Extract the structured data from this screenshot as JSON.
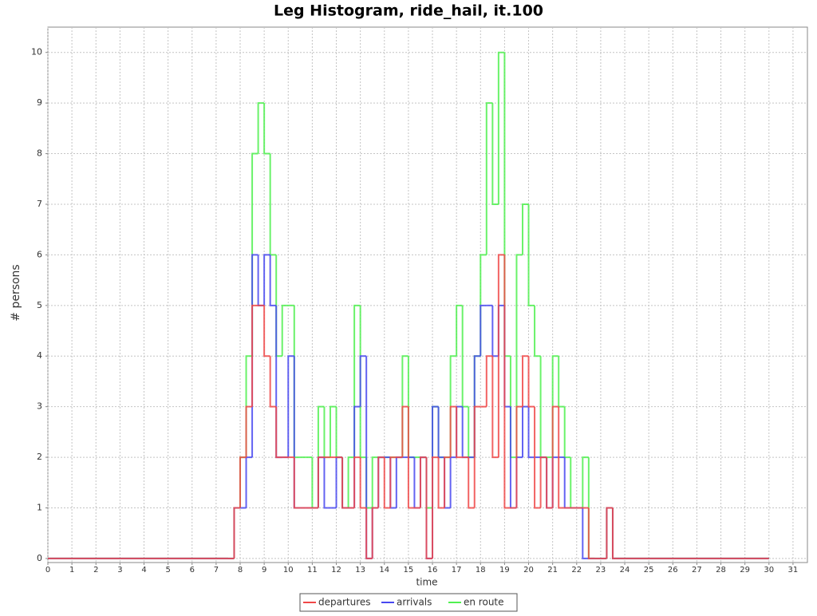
{
  "chart_data": {
    "type": "step",
    "title": "Leg Histogram, ride_hail, it.100",
    "x_label": "time",
    "y_label": "# persons",
    "x": [
      0,
      7.5,
      7.75,
      8,
      8.25,
      8.5,
      8.75,
      9,
      9.25,
      9.5,
      9.75,
      10,
      10.25,
      10.5,
      10.75,
      11,
      11.25,
      11.5,
      11.75,
      12,
      12.25,
      12.5,
      12.75,
      13,
      13.25,
      13.5,
      13.75,
      14,
      14.25,
      14.5,
      14.75,
      15,
      15.25,
      15.5,
      15.75,
      16,
      16.25,
      16.5,
      16.75,
      17,
      17.25,
      17.5,
      17.75,
      18,
      18.25,
      18.5,
      18.75,
      19,
      19.25,
      19.5,
      19.75,
      20,
      20.25,
      20.5,
      20.75,
      21,
      21.25,
      21.5,
      21.75,
      22,
      22.25,
      22.5,
      22.75,
      23,
      23.25,
      23.5,
      30
    ],
    "series": [
      {
        "name": "departures",
        "color": "#f04848",
        "values": [
          0,
          0,
          1,
          2,
          3,
          5,
          5,
          4,
          3,
          2,
          2,
          2,
          1,
          1,
          1,
          1,
          2,
          2,
          2,
          2,
          1,
          1,
          2,
          1,
          0,
          1,
          2,
          1,
          2,
          2,
          3,
          1,
          1,
          2,
          0,
          2,
          1,
          2,
          3,
          2,
          2,
          1,
          3,
          3,
          4,
          2,
          6,
          1,
          1,
          3,
          4,
          3,
          1,
          2,
          1,
          3,
          1,
          1,
          1,
          1,
          1,
          0,
          0,
          0,
          1,
          0,
          0
        ]
      },
      {
        "name": "arrivals",
        "color": "#4848f0",
        "values": [
          0,
          0,
          1,
          1,
          2,
          6,
          5,
          6,
          5,
          2,
          2,
          4,
          1,
          1,
          1,
          1,
          2,
          1,
          1,
          2,
          1,
          1,
          3,
          4,
          0,
          1,
          2,
          2,
          1,
          2,
          2,
          2,
          1,
          2,
          0,
          3,
          2,
          1,
          2,
          3,
          2,
          2,
          4,
          5,
          5,
          4,
          5,
          3,
          1,
          2,
          3,
          2,
          2,
          2,
          1,
          2,
          2,
          1,
          1,
          1,
          0,
          0,
          0,
          0,
          1,
          0,
          0
        ]
      },
      {
        "name": "en route",
        "color": "#50f050",
        "values": [
          0,
          0,
          1,
          2,
          4,
          8,
          9,
          8,
          6,
          4,
          5,
          5,
          2,
          2,
          2,
          1,
          3,
          2,
          3,
          2,
          1,
          2,
          5,
          2,
          1,
          2,
          2,
          2,
          2,
          2,
          4,
          2,
          2,
          2,
          1,
          3,
          2,
          2,
          4,
          5,
          3,
          2,
          4,
          6,
          9,
          7,
          10,
          4,
          2,
          6,
          7,
          5,
          4,
          2,
          2,
          4,
          3,
          2,
          1,
          1,
          2,
          0,
          0,
          0,
          1,
          0,
          0
        ]
      }
    ],
    "xlim": [
      0,
      31.6
    ],
    "ylim": [
      -0.08,
      10.5
    ],
    "xticks": [
      0,
      1,
      2,
      3,
      4,
      5,
      6,
      7,
      8,
      9,
      10,
      11,
      12,
      13,
      14,
      15,
      16,
      17,
      18,
      19,
      20,
      21,
      22,
      23,
      24,
      25,
      26,
      27,
      28,
      29,
      30,
      31
    ],
    "yticks": [
      0,
      1,
      2,
      3,
      4,
      5,
      6,
      7,
      8,
      9,
      10
    ],
    "grid": true,
    "legend": "bottom"
  }
}
